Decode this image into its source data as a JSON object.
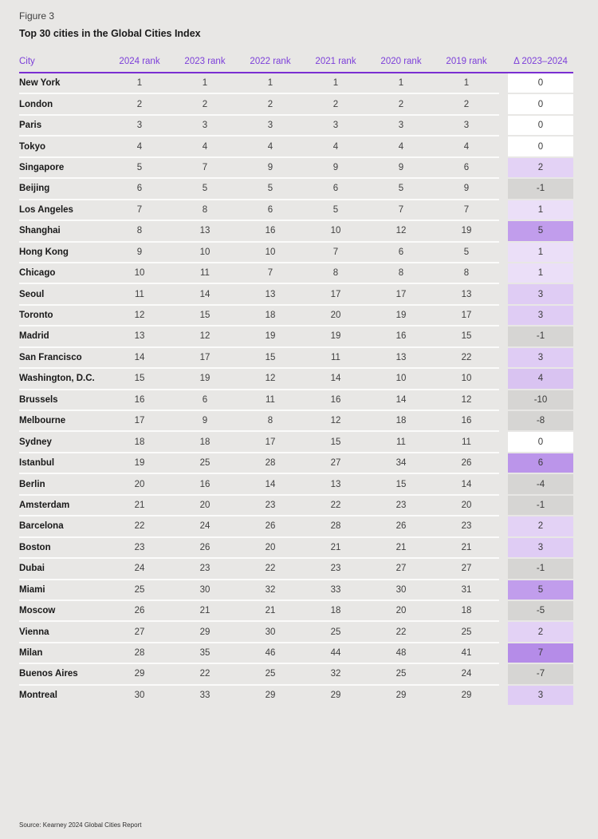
{
  "page": {
    "figure_label": "Figure 3",
    "title": "Top 30 cities in the Global Cities Index",
    "source": "Source: Kearney 2024 Global Cities Report"
  },
  "chart_data": {
    "type": "table",
    "figure_label": "Figure 3",
    "title": "Top 30 cities in the Global Cities Index",
    "source": "Source: Kearney 2024 Global Cities Report",
    "columns": [
      "City",
      "2024 rank",
      "2023 rank",
      "2022 rank",
      "2021 rank",
      "2020 rank",
      "2019 rank",
      "Δ 2023–2024"
    ],
    "rows": [
      {
        "city": "New York",
        "ranks": [
          1,
          1,
          1,
          1,
          1,
          1
        ],
        "delta": 0
      },
      {
        "city": "London",
        "ranks": [
          2,
          2,
          2,
          2,
          2,
          2
        ],
        "delta": 0
      },
      {
        "city": "Paris",
        "ranks": [
          3,
          3,
          3,
          3,
          3,
          3
        ],
        "delta": 0
      },
      {
        "city": "Tokyo",
        "ranks": [
          4,
          4,
          4,
          4,
          4,
          4
        ],
        "delta": 0
      },
      {
        "city": "Singapore",
        "ranks": [
          5,
          7,
          9,
          9,
          9,
          6
        ],
        "delta": 2
      },
      {
        "city": "Beijing",
        "ranks": [
          6,
          5,
          5,
          6,
          5,
          9
        ],
        "delta": -1
      },
      {
        "city": "Los Angeles",
        "ranks": [
          7,
          8,
          6,
          5,
          7,
          7
        ],
        "delta": 1
      },
      {
        "city": "Shanghai",
        "ranks": [
          8,
          13,
          16,
          10,
          12,
          19
        ],
        "delta": 5
      },
      {
        "city": "Hong Kong",
        "ranks": [
          9,
          10,
          10,
          7,
          6,
          5
        ],
        "delta": 1
      },
      {
        "city": "Chicago",
        "ranks": [
          10,
          11,
          7,
          8,
          8,
          8
        ],
        "delta": 1
      },
      {
        "city": "Seoul",
        "ranks": [
          11,
          14,
          13,
          17,
          17,
          13
        ],
        "delta": 3
      },
      {
        "city": "Toronto",
        "ranks": [
          12,
          15,
          18,
          20,
          19,
          17
        ],
        "delta": 3
      },
      {
        "city": "Madrid",
        "ranks": [
          13,
          12,
          19,
          19,
          16,
          15
        ],
        "delta": -1
      },
      {
        "city": "San Francisco",
        "ranks": [
          14,
          17,
          15,
          11,
          13,
          22
        ],
        "delta": 3
      },
      {
        "city": "Washington, D.C.",
        "ranks": [
          15,
          19,
          12,
          14,
          10,
          10
        ],
        "delta": 4
      },
      {
        "city": "Brussels",
        "ranks": [
          16,
          6,
          11,
          16,
          14,
          12
        ],
        "delta": -10
      },
      {
        "city": "Melbourne",
        "ranks": [
          17,
          9,
          8,
          12,
          18,
          16
        ],
        "delta": -8
      },
      {
        "city": "Sydney",
        "ranks": [
          18,
          18,
          17,
          15,
          11,
          11
        ],
        "delta": 0
      },
      {
        "city": "Istanbul",
        "ranks": [
          19,
          25,
          28,
          27,
          34,
          26
        ],
        "delta": 6
      },
      {
        "city": "Berlin",
        "ranks": [
          20,
          16,
          14,
          13,
          15,
          14
        ],
        "delta": -4
      },
      {
        "city": "Amsterdam",
        "ranks": [
          21,
          20,
          23,
          22,
          23,
          20
        ],
        "delta": -1
      },
      {
        "city": "Barcelona",
        "ranks": [
          22,
          24,
          26,
          28,
          26,
          23
        ],
        "delta": 2
      },
      {
        "city": "Boston",
        "ranks": [
          23,
          26,
          20,
          21,
          21,
          21
        ],
        "delta": 3
      },
      {
        "city": "Dubai",
        "ranks": [
          24,
          23,
          22,
          23,
          27,
          27
        ],
        "delta": -1
      },
      {
        "city": "Miami",
        "ranks": [
          25,
          30,
          32,
          33,
          30,
          31
        ],
        "delta": 5
      },
      {
        "city": "Moscow",
        "ranks": [
          26,
          21,
          21,
          18,
          20,
          18
        ],
        "delta": -5
      },
      {
        "city": "Vienna",
        "ranks": [
          27,
          29,
          30,
          25,
          22,
          25
        ],
        "delta": 2
      },
      {
        "city": "Milan",
        "ranks": [
          28,
          35,
          46,
          44,
          48,
          41
        ],
        "delta": 7
      },
      {
        "city": "Buenos Aires",
        "ranks": [
          29,
          22,
          25,
          32,
          25,
          24
        ],
        "delta": -7
      },
      {
        "city": "Montreal",
        "ranks": [
          30,
          33,
          29,
          29,
          29,
          29
        ],
        "delta": 3
      }
    ]
  },
  "colors": {
    "page_bg": "#e8e7e5",
    "accent_purple": "#7a2fd2",
    "header_text_purple": "#7c3fd9",
    "separator_white": "#fbfbfa",
    "delta_zero_bg": "#ffffff",
    "delta_negative_bg": "#d6d5d3",
    "delta_pos_bgs": {
      "1": "#ebdff8",
      "2": "#e3d2f5",
      "3": "#dfccf4",
      "4": "#d9c3f1",
      "5": "#c19dec",
      "6": "#bb95ea",
      "7": "#b58ce8"
    }
  }
}
